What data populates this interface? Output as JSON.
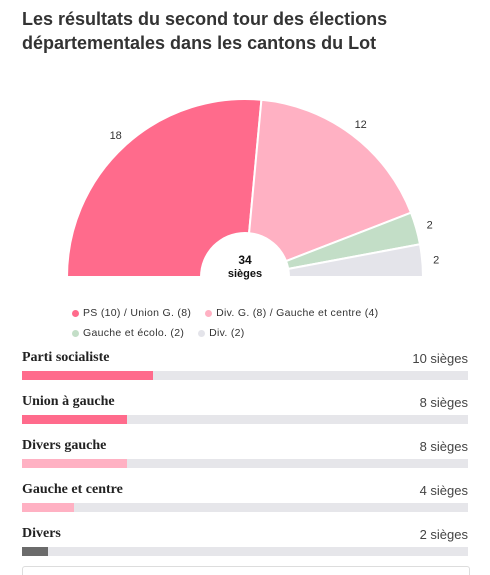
{
  "title": "Les résultats du second tour des élections départementales dans les cantons du Lot",
  "chart_data": {
    "type": "pie",
    "subtype": "hemicycle",
    "total": 34,
    "total_label": "34",
    "total_unit": "sièges",
    "segments": [
      {
        "name": "PS (10) / Union G. (8)",
        "value": 18,
        "color": "#ff6b8c"
      },
      {
        "name": "Div. G. (8) / Gauche et centre (4)",
        "value": 12,
        "color": "#ffb1c3"
      },
      {
        "name": "Gauche et écolo. (2)",
        "value": 2,
        "color": "#c3dec7"
      },
      {
        "name": "Div. (2)",
        "value": 2,
        "color": "#e4e4ea"
      }
    ]
  },
  "rows": [
    {
      "name": "Parti socialiste",
      "value": 10,
      "label": "10 sièges",
      "color": "#ff6b8c"
    },
    {
      "name": "Union à gauche",
      "value": 8,
      "label": "8 sièges",
      "color": "#ff6b8c"
    },
    {
      "name": "Divers gauche",
      "value": 8,
      "label": "8 sièges",
      "color": "#ffb1c3"
    },
    {
      "name": "Gauche et centre",
      "value": 4,
      "label": "4 sièges",
      "color": "#ffb1c3"
    },
    {
      "name": "Divers",
      "value": 2,
      "label": "2 sièges",
      "color": "#6b6b6b"
    }
  ],
  "row_max": 34
}
